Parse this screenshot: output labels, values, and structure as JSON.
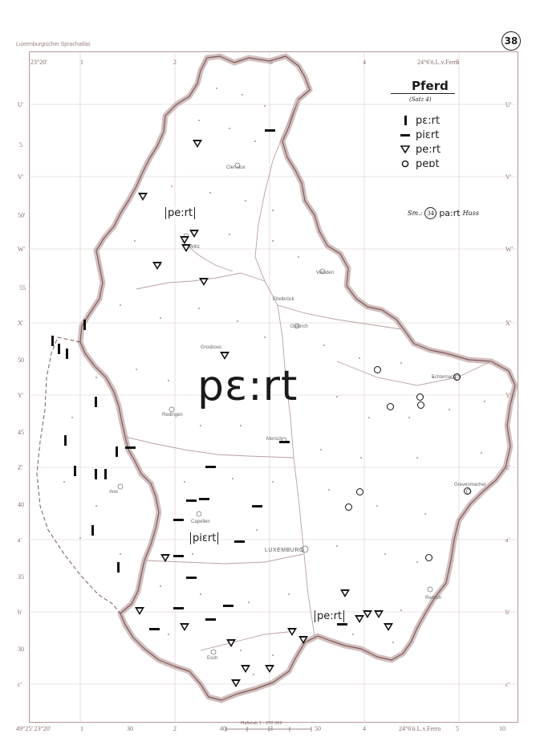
{
  "atlas": {
    "title": "Luxemburgischer Sprachatlas",
    "page": "38"
  },
  "colors": {
    "border": "#b49898",
    "map_line": "#c4a8a8",
    "symbol": "#111111"
  },
  "grid": {
    "top_left": "23°20'",
    "top_right": "24°6'ö.L.v.Ferro",
    "bottom_left": "49°25' 23°20'",
    "bottom_right": "24°6'ö.L.v.Ferro",
    "cols": [
      "1",
      "2",
      "3",
      "4",
      "5"
    ],
    "col_minutes": [
      "30",
      "40",
      "50",
      "10"
    ],
    "rows": [
      "U'",
      "V'",
      "W'",
      "X'",
      "Y'",
      "Z'",
      "a'",
      "b'",
      "c'"
    ],
    "row_minutes": [
      "5",
      "50'",
      "55",
      "50",
      "45",
      "40",
      "35",
      "30"
    ]
  },
  "legend": {
    "title": "Pferd",
    "subtitle": "(Satz 4)",
    "items": [
      {
        "symbol": "bar",
        "label": "pɛ:rt"
      },
      {
        "symbol": "dash",
        "label": "piɛrt"
      },
      {
        "symbol": "triangle",
        "label": "pe:rt"
      },
      {
        "symbol": "circle",
        "label": "peɒt"
      }
    ],
    "sm_note": {
      "prefix": "Sm.:",
      "number": "34",
      "form": "pa:rt",
      "place": "Huss"
    }
  },
  "map": {
    "main_form": "pɛ:rt",
    "area_labels": [
      "pe:rt",
      "piɛrt",
      "pe:rt"
    ],
    "towns": [
      "Clervaux",
      "Wiltz",
      "Vianden",
      "Diekirch",
      "Echternach",
      "Redingen",
      "Mersch",
      "Arel",
      "Capellen",
      "LUXEMBURG",
      "Grevenmacher",
      "Remich",
      "Esch",
      "Grosbous",
      "Ettelbrück"
    ],
    "scale": "Maßstab 1 : 250 000"
  }
}
